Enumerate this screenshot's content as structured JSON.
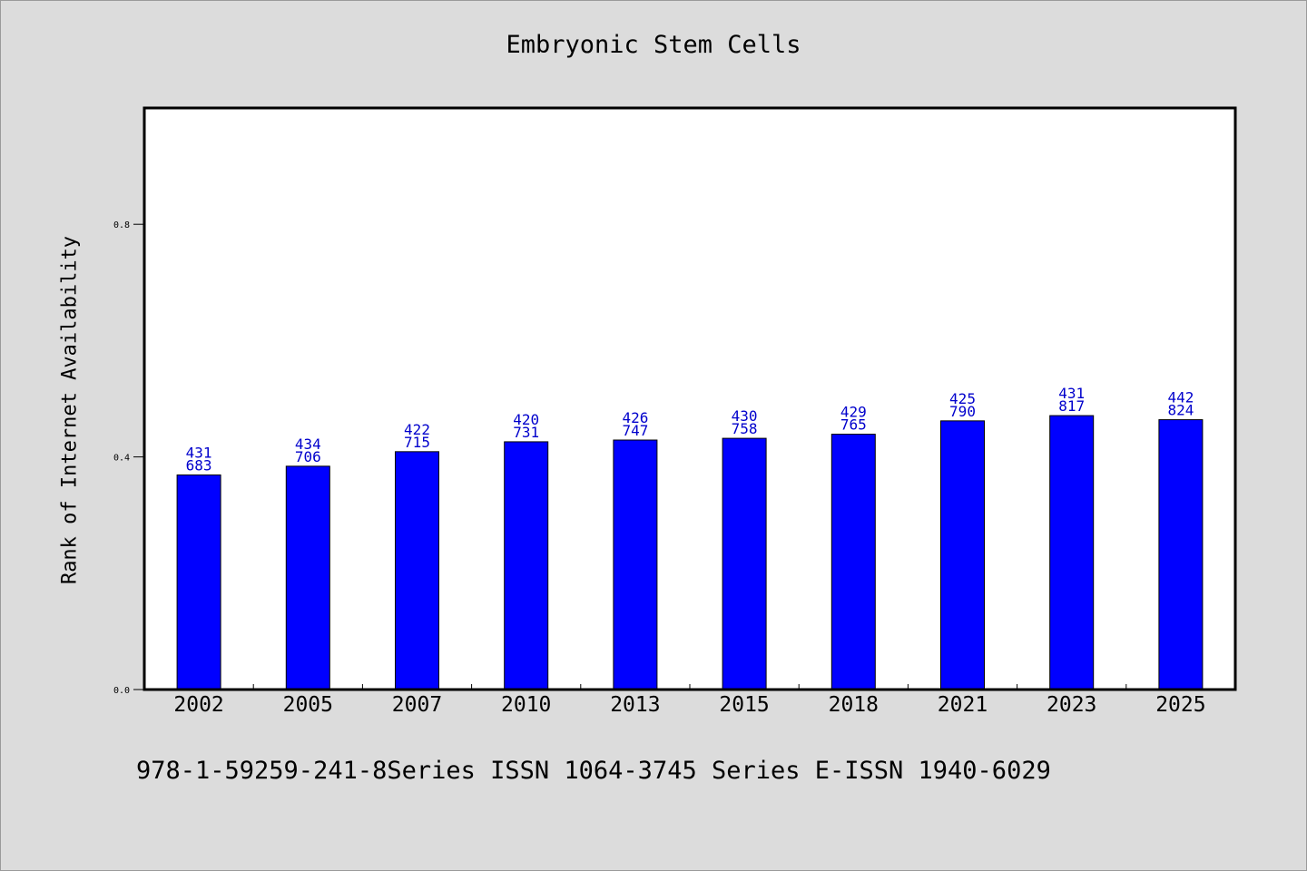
{
  "chart_data": {
    "type": "bar",
    "title": "Embryonic Stem Cells",
    "xlabel": "",
    "ylabel": "Rank of Internet Availability",
    "ylim": [
      0,
      1.0
    ],
    "yticks": [
      0.0,
      0.4,
      0.8
    ],
    "ytick_labels": [
      "0.0",
      "0.4",
      "0.8"
    ],
    "categories": [
      "2002",
      "2005",
      "2007",
      "2010",
      "2013",
      "2015",
      "2018",
      "2021",
      "2023",
      "2025"
    ],
    "values": [
      0.369,
      0.384,
      0.409,
      0.426,
      0.429,
      0.432,
      0.439,
      0.462,
      0.471,
      0.464
    ],
    "data_labels": [
      [
        "431",
        "683"
      ],
      [
        "434",
        "706"
      ],
      [
        "422",
        "715"
      ],
      [
        "420",
        "731"
      ],
      [
        "426",
        "747"
      ],
      [
        "430",
        "758"
      ],
      [
        "429",
        "765"
      ],
      [
        "425",
        "790"
      ],
      [
        "431",
        "817"
      ],
      [
        "442",
        "824"
      ]
    ],
    "bar_color": "#0000ff",
    "label_color": "#0000cc",
    "grid": false,
    "legend": "none"
  },
  "footer": "978-1-59259-241-8Series ISSN 1064-3745 Series E-ISSN 1940-6029"
}
